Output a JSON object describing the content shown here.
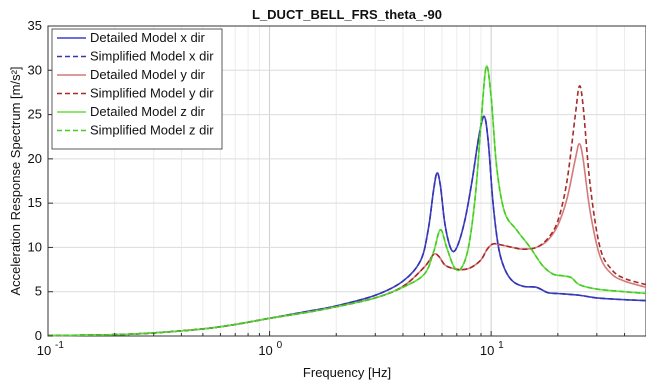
{
  "chart_data": {
    "type": "line",
    "title": "L_DUCT_BELL_FRS_theta_-90",
    "xlabel": "Frequency [Hz]",
    "ylabel": "Acceleration Response Spectrum [m/s²]",
    "x_scale": "log",
    "xlim": [
      0.1,
      50
    ],
    "ylim": [
      0,
      35
    ],
    "x_ticks": [
      {
        "value": 0.1,
        "base": "10",
        "exp": "-1"
      },
      {
        "value": 1,
        "base": "10",
        "exp": "0"
      },
      {
        "value": 10,
        "base": "10",
        "exp": "1"
      }
    ],
    "y_ticks": [
      0,
      5,
      10,
      15,
      20,
      25,
      30,
      35
    ],
    "grid": true,
    "legend_position": "top-left",
    "series": [
      {
        "name": "Detailed Model x dir",
        "color": "#3f3fc9",
        "dash": "solid",
        "points": [
          [
            0.1,
            0.05
          ],
          [
            0.2,
            0.15
          ],
          [
            0.3,
            0.35
          ],
          [
            0.5,
            0.8
          ],
          [
            0.7,
            1.3
          ],
          [
            1,
            2.0
          ],
          [
            1.5,
            2.8
          ],
          [
            2,
            3.4
          ],
          [
            3,
            4.6
          ],
          [
            4,
            6.2
          ],
          [
            4.8,
            8.5
          ],
          [
            5.2,
            12
          ],
          [
            5.5,
            16.5
          ],
          [
            5.7,
            18.4
          ],
          [
            5.9,
            17
          ],
          [
            6.2,
            12.5
          ],
          [
            6.6,
            9.8
          ],
          [
            7.0,
            10.0
          ],
          [
            7.6,
            13
          ],
          [
            8.2,
            17.5
          ],
          [
            8.8,
            22.5
          ],
          [
            9.3,
            24.8
          ],
          [
            9.7,
            22
          ],
          [
            10.2,
            15
          ],
          [
            10.8,
            10
          ],
          [
            11.5,
            7.6
          ],
          [
            12.5,
            6.2
          ],
          [
            14,
            5.6
          ],
          [
            16,
            5.5
          ],
          [
            18,
            4.9
          ],
          [
            20,
            4.8
          ],
          [
            25,
            4.6
          ],
          [
            30,
            4.3
          ],
          [
            40,
            4.1
          ],
          [
            50,
            4.0
          ]
        ]
      },
      {
        "name": "Simplified Model x dir",
        "color": "#3535b0",
        "dash": "dashed",
        "points": [
          [
            0.1,
            0.05
          ],
          [
            0.2,
            0.15
          ],
          [
            0.3,
            0.35
          ],
          [
            0.5,
            0.8
          ],
          [
            0.7,
            1.3
          ],
          [
            1,
            2.0
          ],
          [
            1.5,
            2.8
          ],
          [
            2,
            3.4
          ],
          [
            3,
            4.6
          ],
          [
            4,
            6.2
          ],
          [
            4.8,
            8.5
          ],
          [
            5.2,
            12
          ],
          [
            5.5,
            16.5
          ],
          [
            5.7,
            18.4
          ],
          [
            5.9,
            17
          ],
          [
            6.2,
            12.5
          ],
          [
            6.6,
            9.8
          ],
          [
            7.0,
            10.0
          ],
          [
            7.6,
            13
          ],
          [
            8.2,
            17.5
          ],
          [
            8.8,
            22.5
          ],
          [
            9.3,
            24.8
          ],
          [
            9.7,
            22
          ],
          [
            10.2,
            15
          ],
          [
            10.8,
            10
          ],
          [
            11.5,
            7.6
          ],
          [
            12.5,
            6.2
          ],
          [
            14,
            5.6
          ],
          [
            16,
            5.5
          ],
          [
            18,
            4.9
          ],
          [
            20,
            4.8
          ],
          [
            25,
            4.6
          ],
          [
            30,
            4.3
          ],
          [
            40,
            4.1
          ],
          [
            50,
            4.0
          ]
        ]
      },
      {
        "name": "Detailed Model y dir",
        "color": "#d47a7a",
        "dash": "solid",
        "points": [
          [
            0.1,
            0.05
          ],
          [
            0.2,
            0.15
          ],
          [
            0.3,
            0.35
          ],
          [
            0.5,
            0.8
          ],
          [
            0.7,
            1.3
          ],
          [
            1,
            2.0
          ],
          [
            1.5,
            2.7
          ],
          [
            2,
            3.3
          ],
          [
            3,
            4.3
          ],
          [
            4,
            5.6
          ],
          [
            5,
            7.8
          ],
          [
            5.5,
            9.2
          ],
          [
            5.8,
            9.0
          ],
          [
            6.2,
            8.0
          ],
          [
            6.8,
            7.6
          ],
          [
            7.5,
            7.5
          ],
          [
            8.2,
            7.8
          ],
          [
            9.0,
            8.6
          ],
          [
            9.6,
            9.8
          ],
          [
            10.2,
            10.4
          ],
          [
            11,
            10.3
          ],
          [
            12.5,
            10.0
          ],
          [
            14,
            9.8
          ],
          [
            16,
            10.0
          ],
          [
            18,
            10.8
          ],
          [
            20,
            12.5
          ],
          [
            22,
            15.5
          ],
          [
            24,
            20
          ],
          [
            25,
            21.7
          ],
          [
            26,
            20
          ],
          [
            28,
            14
          ],
          [
            31,
            9
          ],
          [
            35,
            7
          ],
          [
            40,
            6.2
          ],
          [
            50,
            5.5
          ]
        ]
      },
      {
        "name": "Simplified Model y dir",
        "color": "#a52a2a",
        "dash": "dashed",
        "points": [
          [
            0.1,
            0.05
          ],
          [
            0.2,
            0.15
          ],
          [
            0.3,
            0.35
          ],
          [
            0.5,
            0.8
          ],
          [
            0.7,
            1.3
          ],
          [
            1,
            2.0
          ],
          [
            1.5,
            2.7
          ],
          [
            2,
            3.3
          ],
          [
            3,
            4.3
          ],
          [
            4,
            5.6
          ],
          [
            5,
            7.8
          ],
          [
            5.5,
            9.2
          ],
          [
            5.8,
            9.0
          ],
          [
            6.2,
            8.0
          ],
          [
            6.8,
            7.6
          ],
          [
            7.5,
            7.5
          ],
          [
            8.2,
            7.8
          ],
          [
            9.0,
            8.6
          ],
          [
            9.6,
            9.8
          ],
          [
            10.2,
            10.4
          ],
          [
            11,
            10.3
          ],
          [
            12.5,
            10.0
          ],
          [
            14,
            9.8
          ],
          [
            16,
            10.0
          ],
          [
            18,
            11
          ],
          [
            20,
            13
          ],
          [
            22,
            17.5
          ],
          [
            24,
            25
          ],
          [
            25,
            28.2
          ],
          [
            26,
            26
          ],
          [
            28,
            17
          ],
          [
            31,
            10
          ],
          [
            35,
            7.5
          ],
          [
            40,
            6.5
          ],
          [
            50,
            5.8
          ]
        ]
      },
      {
        "name": "Detailed Model z dir",
        "color": "#66dd44",
        "dash": "solid",
        "points": [
          [
            0.1,
            0.05
          ],
          [
            0.2,
            0.15
          ],
          [
            0.3,
            0.35
          ],
          [
            0.5,
            0.8
          ],
          [
            0.7,
            1.3
          ],
          [
            1,
            2.0
          ],
          [
            1.5,
            2.7
          ],
          [
            2,
            3.3
          ],
          [
            3,
            4.3
          ],
          [
            4,
            5.5
          ],
          [
            5,
            7.0
          ],
          [
            5.5,
            9.5
          ],
          [
            5.9,
            12
          ],
          [
            6.3,
            10
          ],
          [
            6.8,
            7.8
          ],
          [
            7.3,
            7.6
          ],
          [
            7.9,
            10
          ],
          [
            8.5,
            16
          ],
          [
            9.0,
            24
          ],
          [
            9.5,
            30.4
          ],
          [
            10.0,
            27
          ],
          [
            10.6,
            19
          ],
          [
            11.5,
            14
          ],
          [
            13,
            12
          ],
          [
            15,
            10
          ],
          [
            17,
            8
          ],
          [
            19,
            7.0
          ],
          [
            21,
            6.8
          ],
          [
            23,
            6.6
          ],
          [
            25,
            5.8
          ],
          [
            30,
            5.3
          ],
          [
            40,
            5.0
          ],
          [
            50,
            4.8
          ]
        ]
      },
      {
        "name": "Simplified Model z dir",
        "color": "#44cc22",
        "dash": "dashed",
        "points": [
          [
            0.1,
            0.05
          ],
          [
            0.2,
            0.15
          ],
          [
            0.3,
            0.35
          ],
          [
            0.5,
            0.8
          ],
          [
            0.7,
            1.3
          ],
          [
            1,
            2.0
          ],
          [
            1.5,
            2.7
          ],
          [
            2,
            3.3
          ],
          [
            3,
            4.3
          ],
          [
            4,
            5.5
          ],
          [
            5,
            7.0
          ],
          [
            5.5,
            9.5
          ],
          [
            5.9,
            12
          ],
          [
            6.3,
            10
          ],
          [
            6.8,
            7.8
          ],
          [
            7.3,
            7.6
          ],
          [
            7.9,
            10
          ],
          [
            8.5,
            16
          ],
          [
            9.0,
            24
          ],
          [
            9.5,
            30.4
          ],
          [
            10.0,
            27
          ],
          [
            10.6,
            19
          ],
          [
            11.5,
            14
          ],
          [
            13,
            12
          ],
          [
            15,
            10
          ],
          [
            17,
            8
          ],
          [
            19,
            7.0
          ],
          [
            21,
            6.8
          ],
          [
            23,
            6.6
          ],
          [
            25,
            5.8
          ],
          [
            30,
            5.3
          ],
          [
            40,
            5.0
          ],
          [
            50,
            4.8
          ]
        ]
      }
    ]
  }
}
